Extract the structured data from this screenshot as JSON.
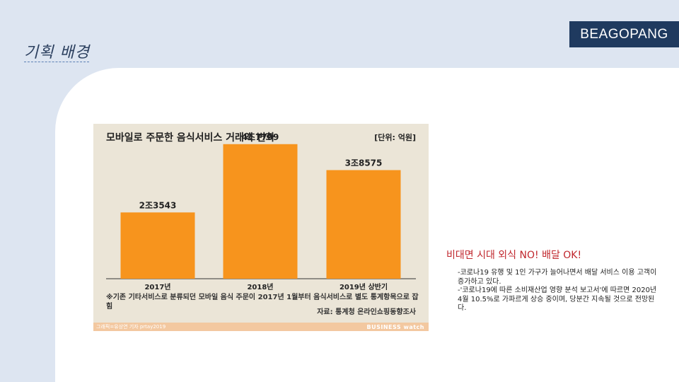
{
  "page": {
    "title": "기획 배경",
    "brand": "BEAGOPANG"
  },
  "chart": {
    "title": "모바일로 주문한 음식서비스 거래액 변화",
    "unit": "[단위: 억원]",
    "footnote": "※기존 기타서비스로 분류되던 모바일 음식 주문이 2017년 1월부터 음식서비스로 별도 통계항목으로 잡힘",
    "source": "자료: 통계청 온라인쇼핑동향조사",
    "credit": "그래픽=유상연 기자 prtay2019",
    "watermark": "BUSINESS watch"
  },
  "chart_data": {
    "type": "bar",
    "categories": [
      "2017년",
      "2018년",
      "2019년 상반기"
    ],
    "values": [
      23543,
      47799,
      38575
    ],
    "value_labels": [
      "2조3543",
      "4조7799",
      "3조8575"
    ],
    "title": "모바일로 주문한 음식서비스 거래액 변화",
    "ylabel": "[단위: 억원]",
    "ylim": [
      0,
      50000
    ],
    "bar_color": "#f7941d",
    "grid": false
  },
  "text": {
    "headline": "비대면 시대 외식 NO! 배달 OK!",
    "paragraph1": "-코로나19 유행 및 1인 가구가 늘어나면서 배달 서비스 이용 고객이 증가하고 있다.",
    "paragraph2": "-'코로나19에 따른 소비재산업 영향 분석 보고서'에 따르면 2020년 4월 10.5%로 가파르게 상승 중이며, 당분간 지속될 것으로 전망된다."
  },
  "colors": {
    "background": "#dde5f1",
    "brand_box": "#1f3a5f",
    "headline": "#c0272d",
    "bar": "#f7941d"
  }
}
